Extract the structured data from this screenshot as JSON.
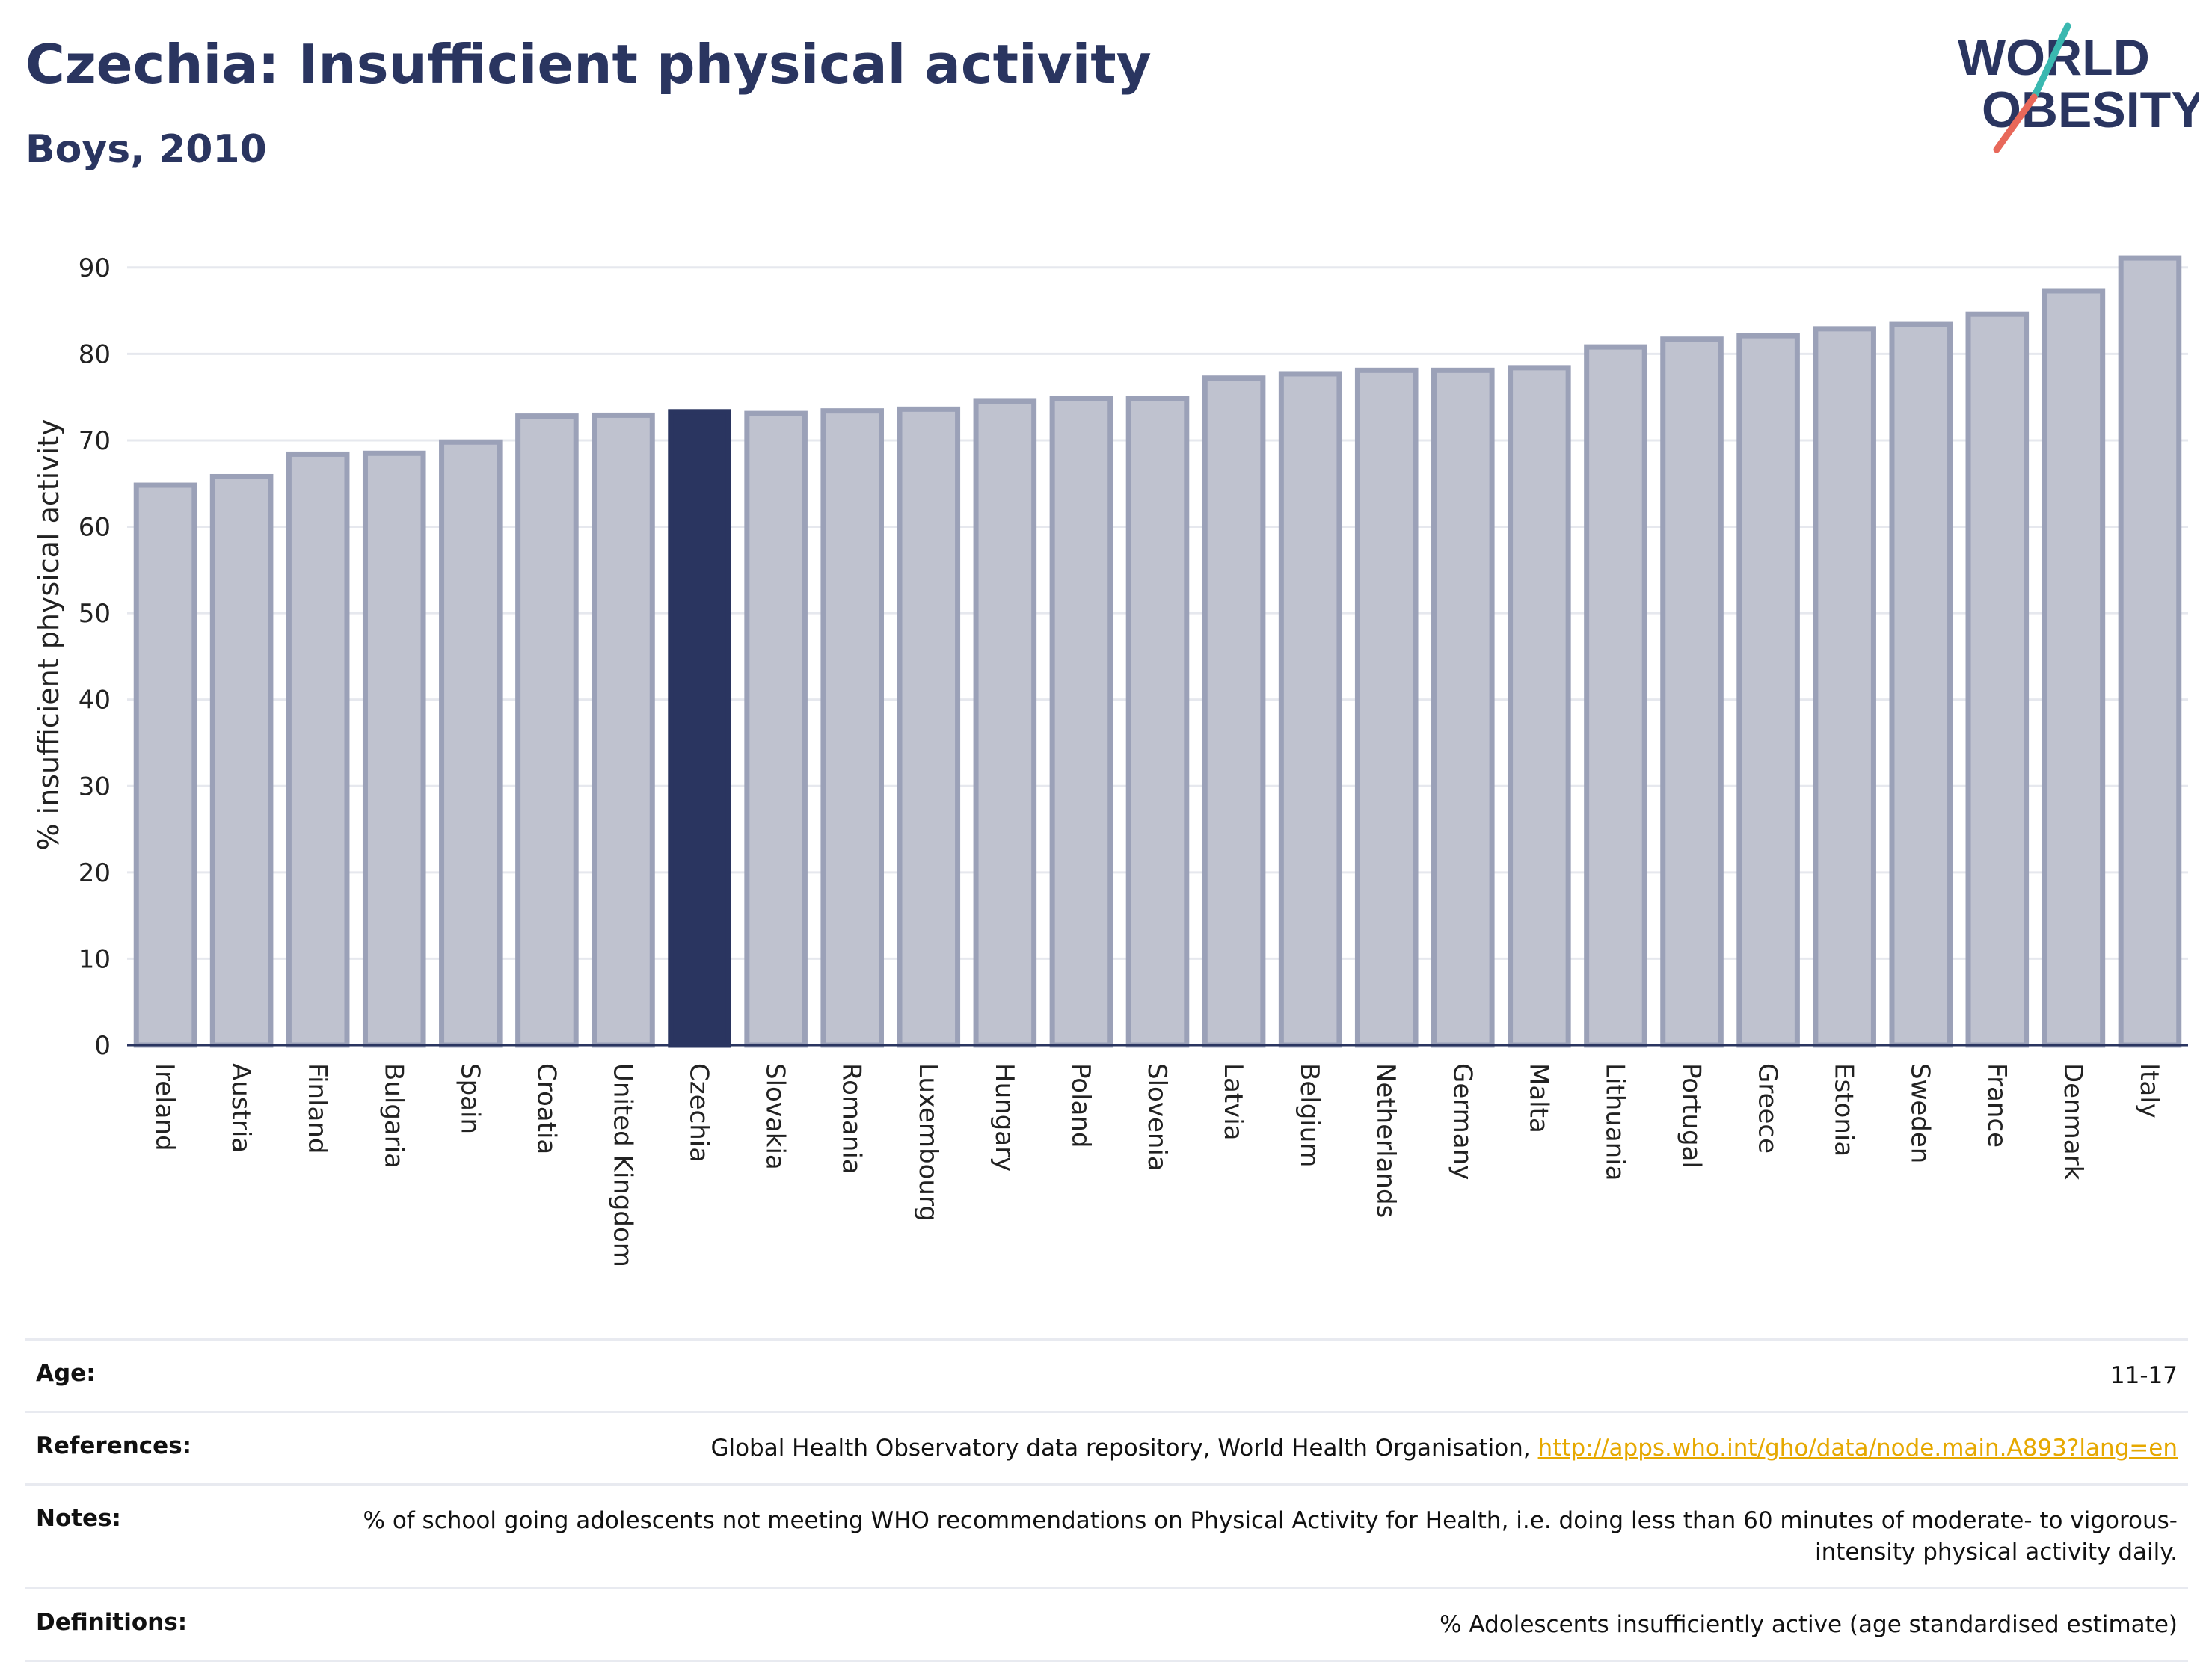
{
  "header": {
    "title": "Czechia: Insufficient physical activity",
    "subtitle": "Boys, 2010"
  },
  "logo": {
    "line1": "WORLD",
    "line2": "OBESITY",
    "colors": {
      "text": "#2a3560",
      "teal": "#3ab8b0",
      "coral": "#e8685a"
    }
  },
  "colors": {
    "bar_fill": "#bfc2cf",
    "bar_stroke": "#9ba1b8",
    "highlight": "#2a3560",
    "grid": "#e6e8ee",
    "axis": "#2a3560"
  },
  "chart_data": {
    "type": "bar",
    "title": "Czechia: Insufficient physical activity",
    "subtitle": "Boys, 2010",
    "xlabel": "",
    "ylabel": "% insufficient physical activity",
    "ylim": [
      0,
      95
    ],
    "yticks": [
      0,
      10,
      20,
      30,
      40,
      50,
      60,
      70,
      80,
      90
    ],
    "grid": true,
    "highlight": "Czechia",
    "categories": [
      "Ireland",
      "Austria",
      "Finland",
      "Bulgaria",
      "Spain",
      "Croatia",
      "United Kingdom",
      "Czechia",
      "Slovakia",
      "Romania",
      "Luxembourg",
      "Hungary",
      "Poland",
      "Slovenia",
      "Latvia",
      "Belgium",
      "Netherlands",
      "Germany",
      "Malta",
      "Lithuania",
      "Portugal",
      "Greece",
      "Estonia",
      "Sweden",
      "France",
      "Denmark",
      "Italy"
    ],
    "values": [
      64.8,
      65.8,
      68.4,
      68.5,
      69.8,
      72.8,
      72.9,
      73.3,
      73.1,
      73.4,
      73.6,
      74.5,
      74.8,
      74.8,
      77.2,
      77.7,
      78.1,
      78.1,
      78.4,
      80.8,
      81.7,
      82.1,
      82.9,
      83.4,
      84.6,
      87.3,
      91.1
    ]
  },
  "info": {
    "age_label": "Age:",
    "age_value": "11-17",
    "references_label": "References:",
    "references_text": "Global Health Observatory data repository, World Health Organisation,",
    "references_link": "http://apps.who.int/gho/data/node.main.A893?lang=en",
    "notes_label": "Notes:",
    "notes_text": "% of school going adolescents not meeting WHO recommendations on Physical Activity for Health, i.e. doing less than 60 minutes of moderate- to vigorous-intensity physical activity daily.",
    "definitions_label": "Definitions:",
    "definitions_text": "% Adolescents insufficiently active (age standardised estimate)"
  }
}
